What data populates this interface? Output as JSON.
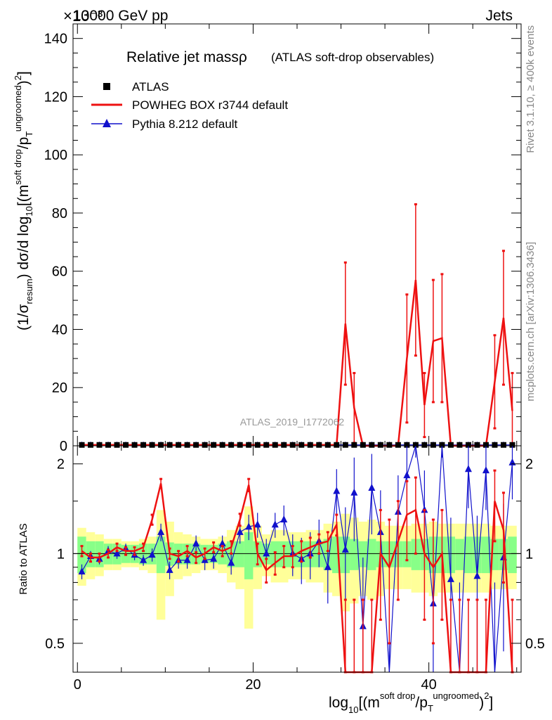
{
  "header": {
    "left": "13000 GeV pp",
    "right": "Jets",
    "exponent": "×10⁻³"
  },
  "side": {
    "rivet": "Rivet 3.1.10, ≥ 400k events",
    "mcplots": "mcplots.cern.ch [arXiv:1306.3436]"
  },
  "chart_data": {
    "type": "line",
    "title": "Relative jet massρ",
    "subtitle": "(ATLAS soft-drop observables)",
    "watermark": "ATLAS_2019_I1772062",
    "xlabel": "log10[(m^soft drop/pT^ungroomed)^2]",
    "ylabel_main": "(1/σresum) dσ/d log10[(m^soft drop/pT^ungroomed)^2]",
    "ylabel_ratio": "Ratio to ATLAS",
    "xlim": [
      -0.5,
      50.5
    ],
    "ylim_main": [
      0,
      145
    ],
    "ylim_ratio": [
      0.4,
      2.3
    ],
    "x_ticks": [
      "0",
      "20",
      "40"
    ],
    "y_ticks_main": [
      "0",
      "20",
      "40",
      "60",
      "80",
      "100",
      "120",
      "140"
    ],
    "y_ticks_ratio": [
      "0.5",
      "1",
      "2"
    ],
    "legend": [
      {
        "label": "ATLAS",
        "color": "#000000",
        "marker": "square"
      },
      {
        "label": "POWHEG BOX r3744 default",
        "color": "#ee1111",
        "marker": "line"
      },
      {
        "label": "Pythia 8.212 default",
        "color": "#1111cc",
        "marker": "triangle"
      }
    ],
    "x": [
      0.5,
      1.5,
      2.5,
      3.5,
      4.5,
      5.5,
      6.5,
      7.5,
      8.5,
      9.5,
      10.5,
      11.5,
      12.5,
      13.5,
      14.5,
      15.5,
      16.5,
      17.5,
      18.5,
      19.5,
      20.5,
      21.5,
      22.5,
      23.5,
      24.5,
      25.5,
      26.5,
      27.5,
      28.5,
      29.5,
      30.5,
      31.5,
      32.5,
      33.5,
      34.5,
      35.5,
      36.5,
      37.5,
      38.5,
      39.5,
      40.5,
      41.5,
      42.5,
      43.5,
      44.5,
      45.5,
      46.5,
      47.5,
      48.5,
      49.5
    ],
    "main_series": [
      {
        "name": "ATLAS",
        "values": [
          0.3,
          0.3,
          0.3,
          0.3,
          0.3,
          0.3,
          0.3,
          0.3,
          0.3,
          0.3,
          0.3,
          0.3,
          0.3,
          0.3,
          0.3,
          0.3,
          0.3,
          0.3,
          0.3,
          0.3,
          0.3,
          0.3,
          0.3,
          0.3,
          0.3,
          0.3,
          0.3,
          0.3,
          0.3,
          0.3,
          0.3,
          0.3,
          0.3,
          0.3,
          0.3,
          0.3,
          0.3,
          0.3,
          0.3,
          0.3,
          0.3,
          0.3,
          0.3,
          0.3,
          0.3,
          0.3,
          0.3,
          0.3,
          0.3,
          0.3
        ]
      },
      {
        "name": "POWHEG BOX r3744 default",
        "values": [
          0.3,
          0.3,
          0.3,
          0.3,
          0.3,
          0.3,
          0.3,
          0.3,
          0.3,
          0.3,
          0.3,
          0.3,
          0.3,
          0.3,
          0.3,
          0.3,
          0.3,
          0.3,
          0.3,
          0.3,
          0.3,
          0.3,
          0.3,
          0.3,
          0.3,
          0.3,
          0.3,
          0.3,
          0.3,
          0.3,
          42,
          13,
          0,
          0,
          0,
          0,
          0,
          30,
          57,
          14,
          36,
          37,
          0,
          0,
          0,
          0,
          0,
          22,
          44,
          12
        ],
        "err": [
          0,
          0,
          0,
          0,
          0,
          0,
          0,
          0,
          0,
          0,
          0,
          0,
          0,
          0,
          0,
          0,
          0,
          0,
          0,
          0,
          0,
          0,
          0,
          0,
          0,
          0,
          0,
          0,
          0,
          0,
          21,
          12,
          0,
          0,
          0,
          0,
          0,
          22,
          26,
          11,
          21,
          22,
          0,
          0,
          0,
          0,
          0,
          16,
          23,
          13
        ]
      },
      {
        "name": "Pythia 8.212 default",
        "values": [
          0.3,
          0.3,
          0.3,
          0.3,
          0.3,
          0.3,
          0.3,
          0.3,
          0.3,
          0.3,
          0.3,
          0.3,
          0.3,
          0.3,
          0.3,
          0.3,
          0.3,
          0.3,
          0.3,
          0.3,
          0.3,
          0.3,
          0.3,
          0.3,
          0.3,
          0.3,
          0.3,
          0.3,
          0.3,
          0.3,
          0.3,
          0.3,
          0.3,
          0.3,
          0.3,
          0.3,
          0.3,
          0.3,
          0.3,
          0.3,
          0.3,
          0.3,
          0.3,
          0.3,
          0.3,
          0.3,
          0.3,
          0.3,
          0.3,
          0.3
        ]
      }
    ],
    "ratio_band_inner": [
      0.14,
      0.1,
      0.1,
      0.08,
      0.08,
      0.07,
      0.07,
      0.08,
      0.08,
      0.14,
      0.09,
      0.08,
      0.08,
      0.08,
      0.07,
      0.07,
      0.08,
      0.1,
      0.1,
      0.18,
      0.1,
      0.08,
      0.1,
      0.1,
      0.1,
      0.1,
      0.1,
      0.1,
      0.12,
      0.14,
      0.14,
      0.12,
      0.1,
      0.12,
      0.1,
      0.1,
      0.1,
      0.1,
      0.12,
      0.12,
      0.14,
      0.14,
      0.14,
      0.12,
      0.14,
      0.14,
      0.14,
      0.12,
      0.12,
      0.14
    ],
    "ratio_band_outer": [
      0.22,
      0.18,
      0.16,
      0.12,
      0.12,
      0.1,
      0.1,
      0.12,
      0.14,
      0.4,
      0.28,
      0.18,
      0.16,
      0.14,
      0.12,
      0.12,
      0.14,
      0.2,
      0.24,
      0.44,
      0.24,
      0.16,
      0.2,
      0.2,
      0.18,
      0.18,
      0.2,
      0.2,
      0.26,
      0.28,
      0.36,
      0.32,
      0.28,
      0.3,
      0.28,
      0.24,
      0.24,
      0.24,
      0.26,
      0.26,
      0.28,
      0.26,
      0.26,
      0.26,
      0.26,
      0.26,
      0.26,
      0.24,
      0.24,
      0.24
    ],
    "ratio_series": [
      {
        "name": "POWHEG BOX r3744 default",
        "values": [
          1.02,
          0.97,
          0.97,
          1.0,
          1.05,
          1.02,
          1.02,
          1.05,
          1.3,
          1.72,
          1.0,
          0.98,
          1.02,
          0.97,
          1.0,
          1.05,
          1.02,
          1.05,
          1.3,
          1.7,
          1.0,
          0.88,
          0.93,
          0.98,
          0.98,
          1.02,
          1.05,
          1.08,
          1.1,
          1.25,
          0.3,
          0.3,
          0.3,
          0.3,
          1.0,
          0.9,
          1.1,
          1.35,
          1.4,
          1.0,
          0.9,
          1.0,
          0.3,
          0.3,
          0.3,
          0.3,
          0.3,
          1.5,
          1.2,
          0.3
        ],
        "err": [
          0.04,
          0.03,
          0.03,
          0.03,
          0.03,
          0.03,
          0.03,
          0.03,
          0.05,
          0.06,
          0.04,
          0.04,
          0.04,
          0.04,
          0.04,
          0.04,
          0.04,
          0.05,
          0.06,
          0.08,
          0.08,
          0.08,
          0.08,
          0.08,
          0.08,
          0.08,
          0.08,
          0.08,
          0.08,
          0.1,
          0.4,
          0.4,
          0.4,
          0.4,
          0.4,
          0.4,
          0.4,
          0.4,
          0.4,
          0.4,
          0.4,
          0.4,
          0.4,
          0.4,
          0.4,
          0.4,
          0.4,
          0.4,
          0.4,
          0.4
        ]
      },
      {
        "name": "Pythia 8.212 default",
        "values": [
          0.87,
          0.98,
          0.96,
          1.02,
          1.0,
          1.04,
          0.99,
          0.95,
          0.99,
          1.18,
          0.88,
          0.95,
          0.95,
          1.08,
          0.95,
          0.96,
          1.08,
          0.93,
          1.18,
          1.23,
          1.25,
          1.0,
          1.25,
          1.3,
          1.0,
          0.96,
          1.0,
          1.1,
          0.9,
          1.62,
          1.03,
          1.6,
          0.57,
          1.66,
          1.18,
          0.3,
          1.38,
          1.83,
          2.6,
          1.4,
          0.68,
          2.6,
          0.82,
          0.3,
          1.92,
          0.84,
          1.9,
          0.3,
          0.97,
          2.02
        ],
        "err": [
          0.05,
          0.04,
          0.04,
          0.04,
          0.04,
          0.04,
          0.04,
          0.04,
          0.05,
          0.08,
          0.06,
          0.06,
          0.06,
          0.07,
          0.07,
          0.07,
          0.07,
          0.08,
          0.1,
          0.12,
          0.12,
          0.12,
          0.12,
          0.15,
          0.16,
          0.17,
          0.18,
          0.2,
          0.22,
          0.3,
          0.4,
          0.5,
          0.4,
          0.5,
          0.45,
          0.4,
          0.45,
          0.5,
          0.5,
          0.5,
          0.5,
          0.5,
          0.5,
          0.5,
          0.5,
          0.5,
          0.5,
          0.5,
          0.5,
          0.5
        ]
      }
    ]
  }
}
